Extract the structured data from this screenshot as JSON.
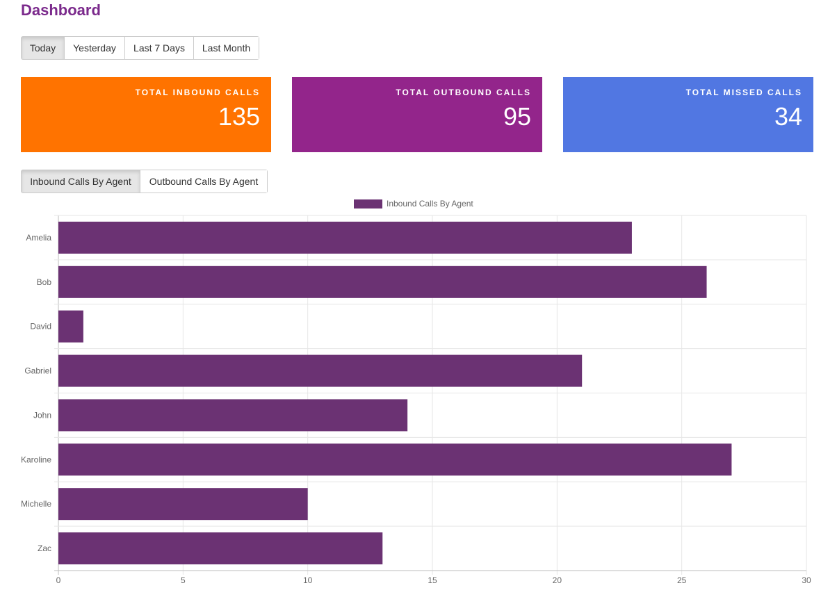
{
  "page": {
    "title": "Dashboard"
  },
  "range_buttons": [
    {
      "label": "Today",
      "active": true
    },
    {
      "label": "Yesterday",
      "active": false
    },
    {
      "label": "Last 7 Days",
      "active": false
    },
    {
      "label": "Last Month",
      "active": false
    }
  ],
  "stats": {
    "inbound": {
      "label": "Total Inbound Calls",
      "value": "135",
      "color": "#ff7300"
    },
    "outbound": {
      "label": "Total Outbound Calls",
      "value": "95",
      "color": "#93258b"
    },
    "missed": {
      "label": "Total Missed Calls",
      "value": "34",
      "color": "#5177e2"
    }
  },
  "agent_tabs": [
    {
      "label": "Inbound Calls By Agent",
      "active": true
    },
    {
      "label": "Outbound Calls By Agent",
      "active": false
    }
  ],
  "chart_data": {
    "type": "bar",
    "orientation": "horizontal",
    "categories": [
      "Amelia",
      "Bob",
      "David",
      "Gabriel",
      "John",
      "Karoline",
      "Michelle",
      "Zac"
    ],
    "series": [
      {
        "name": "Inbound Calls By Agent",
        "values": [
          23,
          26,
          1,
          21,
          14,
          27,
          10,
          13
        ],
        "color": "#6b3273"
      }
    ],
    "xlim": [
      0,
      30
    ],
    "xticks": [
      0,
      5,
      10,
      15,
      20,
      25,
      30
    ],
    "grid": true,
    "legend": "top-center",
    "title": "",
    "xlabel": "",
    "ylabel": ""
  }
}
